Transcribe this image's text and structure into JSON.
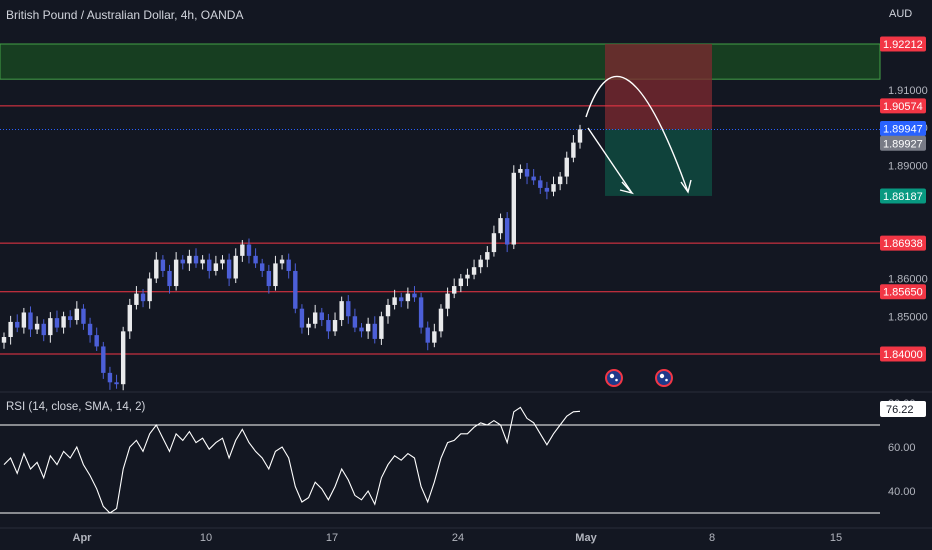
{
  "header": {
    "title": "British Pound / Australian Dollar, 4h, OANDA",
    "currency": "AUD"
  },
  "rsi": {
    "label": "RSI (14, close, SMA, 14, 2)",
    "value_tag": "76.22"
  },
  "colors": {
    "background": "#131722",
    "bull": "#e9eaec",
    "bear": "#4c5fd8",
    "level_line": "#f23645",
    "green_zone": "#1b5e20",
    "stop_zone": "#7f2a30",
    "target_zone": "#0f4a40"
  },
  "chart_data": {
    "type": "candlestick",
    "symbol": "GBPAUD",
    "timeframe": "4h",
    "ylim": [
      1.8305,
      1.9255
    ],
    "y_ticks": [
      "1.91000",
      "1.90000",
      "1.89000",
      "1.86000",
      "1.85000"
    ],
    "x_ticks": [
      "Apr",
      "10",
      "17",
      "24",
      "May",
      "8",
      "15"
    ],
    "price_tags": [
      {
        "label": "1.92212",
        "value": 1.92212,
        "color": "#f23645"
      },
      {
        "label": "1.90574",
        "value": 1.90574,
        "color": "#f23645"
      },
      {
        "label": "1.89947",
        "value": 1.89947,
        "color": "#2962ff"
      },
      {
        "label": "1.89927",
        "value": 1.89927,
        "color": "#787b86"
      },
      {
        "label": "1.88187",
        "value": 1.88187,
        "color": "#089981"
      },
      {
        "label": "1.86938",
        "value": 1.86938,
        "color": "#f23645"
      },
      {
        "label": "1.85650",
        "value": 1.8565,
        "color": "#f23645"
      },
      {
        "label": "1.84000",
        "value": 1.84,
        "color": "#f23645"
      }
    ],
    "horizontal_levels": [
      1.90574,
      1.86938,
      1.8565,
      1.84
    ],
    "current_price": 1.89947,
    "green_zone": [
      1.9128,
      1.92212
    ],
    "position": {
      "entry": 1.89947,
      "stop": 1.92212,
      "target": 1.88187
    },
    "close_path": [
      1.8445,
      1.8485,
      1.847,
      1.851,
      1.8465,
      1.848,
      1.845,
      1.8495,
      1.847,
      1.85,
      1.849,
      1.852,
      1.848,
      1.845,
      1.842,
      1.835,
      1.8325,
      1.832,
      1.846,
      1.853,
      1.856,
      1.854,
      1.86,
      1.865,
      1.862,
      1.858,
      1.865,
      1.864,
      1.866,
      1.864,
      1.865,
      1.862,
      1.864,
      1.865,
      1.86,
      1.866,
      1.869,
      1.866,
      1.864,
      1.862,
      1.858,
      1.864,
      1.865,
      1.862,
      1.852,
      1.847,
      1.848,
      1.851,
      1.849,
      1.846,
      1.849,
      1.854,
      1.85,
      1.847,
      1.846,
      1.848,
      1.844,
      1.85,
      1.853,
      1.855,
      1.854,
      1.856,
      1.855,
      1.847,
      1.843,
      1.846,
      1.852,
      1.856,
      1.858,
      1.86,
      1.861,
      1.863,
      1.865,
      1.867,
      1.872,
      1.876,
      1.869,
      1.888,
      1.889,
      1.887,
      1.886,
      1.884,
      1.883,
      1.885,
      1.887,
      1.892,
      1.896,
      1.8995
    ],
    "rsi_series": {
      "values": [
        52,
        55,
        48,
        57,
        50,
        53,
        46,
        56,
        52,
        58,
        55,
        60,
        52,
        47,
        41,
        33,
        30,
        32,
        50,
        60,
        63,
        58,
        66,
        70,
        64,
        58,
        66,
        63,
        67,
        62,
        64,
        59,
        62,
        64,
        55,
        63,
        68,
        62,
        58,
        55,
        50,
        58,
        60,
        55,
        42,
        35,
        37,
        44,
        41,
        36,
        42,
        50,
        45,
        38,
        36,
        40,
        34,
        46,
        52,
        56,
        54,
        57,
        55,
        42,
        35,
        44,
        55,
        62,
        63,
        66,
        66,
        69,
        71,
        70,
        72,
        70,
        62,
        76,
        78,
        73,
        71,
        66,
        61,
        66,
        70,
        74,
        76,
        76.22
      ],
      "ylim": [
        30,
        82
      ],
      "y_ticks": [
        "80.00",
        "60.00",
        "40.00"
      ],
      "bands": [
        70,
        30
      ]
    }
  }
}
